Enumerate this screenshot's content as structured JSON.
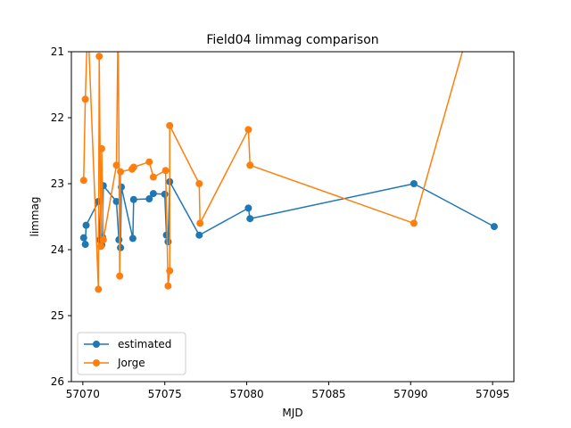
{
  "chart_data": {
    "type": "line",
    "title": "Field04 limmag comparison",
    "xlabel": "MJD",
    "ylabel": "limmag",
    "xlim": [
      57069.3,
      57096.3
    ],
    "ylim": [
      26,
      21
    ],
    "y_inverted": true,
    "xticks": [
      57070,
      57075,
      57080,
      57085,
      57090,
      57095
    ],
    "yticks": [
      21,
      22,
      23,
      24,
      25,
      26
    ],
    "grid": false,
    "legend_position": "lower-left",
    "series": [
      {
        "name": "estimated",
        "color": "#1f77b4",
        "marker": "circle",
        "x": [
          57070.05,
          57070.15,
          57070.2,
          57070.95,
          57071.05,
          57071.15,
          57071.2,
          57071.25,
          57072.05,
          57072.2,
          57072.3,
          57072.35,
          57073.05,
          57073.1,
          57074.05,
          57074.3,
          57075.0,
          57075.1,
          57075.2,
          57075.3,
          57077.1,
          57080.1,
          57080.2,
          57090.2,
          57095.1
        ],
        "y": [
          23.82,
          23.92,
          23.63,
          23.27,
          23.85,
          23.93,
          23.81,
          23.03,
          23.27,
          23.85,
          23.97,
          23.05,
          23.83,
          23.24,
          23.23,
          23.15,
          23.16,
          23.78,
          23.88,
          22.97,
          23.78,
          23.37,
          23.53,
          23.0,
          23.65
        ]
      },
      {
        "name": "Jorge",
        "color": "#ff7f0e",
        "marker": "circle",
        "x": [
          57070.05,
          57070.15,
          57070.3,
          57070.95,
          57071.0,
          57071.1,
          57071.15,
          57071.25,
          57072.05,
          57072.15,
          57072.25,
          57072.3,
          57073.0,
          57073.1,
          57074.05,
          57074.3,
          57075.05,
          57075.2,
          57075.3,
          57075.3,
          57077.1,
          57077.15,
          57080.1,
          57080.2,
          57090.2,
          57093.5
        ],
        "y": [
          22.95,
          21.72,
          20.5,
          24.6,
          21.07,
          23.95,
          22.47,
          23.85,
          22.72,
          20.5,
          24.4,
          22.82,
          22.78,
          22.75,
          22.67,
          22.9,
          22.8,
          24.55,
          24.32,
          22.12,
          23.0,
          23.6,
          22.18,
          22.72,
          23.6,
          20.7
        ]
      }
    ]
  }
}
